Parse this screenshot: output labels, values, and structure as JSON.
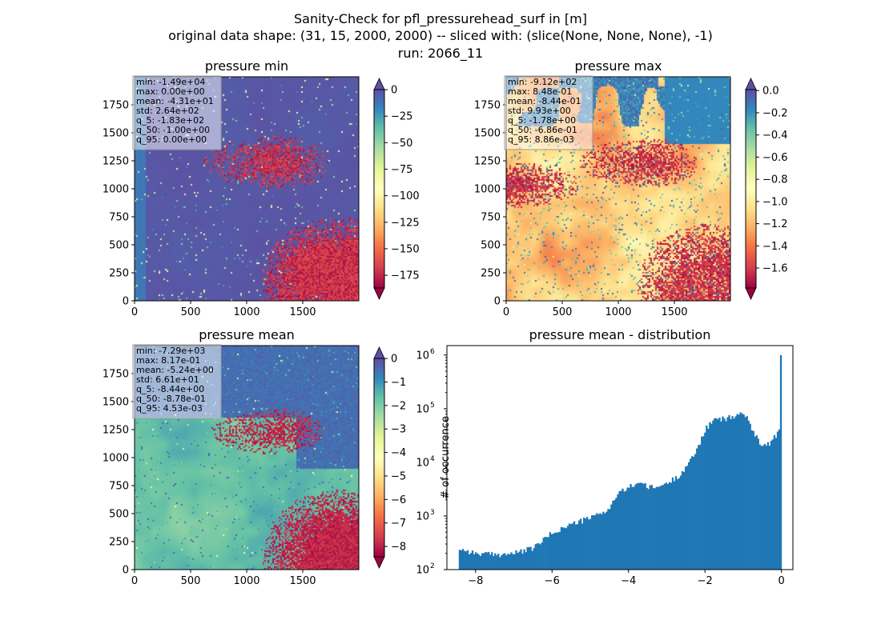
{
  "figure": {
    "suptitle_lines": [
      "Sanity-Check for pfl_pressurehead_surf in [m]",
      "original data shape: (31, 15, 2000, 2000) -- sliced with: (slice(None, None, None), -1)",
      "run: 2066_11"
    ]
  },
  "colors": {
    "spectral": [
      "#9e0142",
      "#d53e4f",
      "#f46d43",
      "#fdae61",
      "#fee08b",
      "#ffffbf",
      "#e6f598",
      "#abdda4",
      "#66c2a5",
      "#3288bd",
      "#5e4fa2"
    ],
    "histogram_bar": "#1f77b4",
    "stats_box_bg": "#ffffff",
    "stats_box_edge": "#999999"
  },
  "chart_data": [
    {
      "type": "heatmap",
      "title": "pressure min",
      "colormap": "Spectral",
      "x_ticks": [
        0,
        500,
        1000,
        1500
      ],
      "y_ticks": [
        0,
        250,
        500,
        750,
        1000,
        1250,
        1500,
        1750
      ],
      "x_range": [
        0,
        2000
      ],
      "y_range": [
        0,
        2000
      ],
      "color_range": [
        -187,
        0
      ],
      "colorbar_ticks": [
        0,
        -25,
        -50,
        -75,
        -100,
        -125,
        -150,
        -175
      ],
      "colorbar_extend": "both",
      "stats": [
        "min: -1.49e+04",
        "max: 0.00e+00",
        "mean: -4.31e+01",
        "std: 2.64e+02",
        "q_5: -1.83e+02",
        "q_50: -1.00e+00",
        "q_95: 0.00e+00"
      ]
    },
    {
      "type": "heatmap",
      "title": "pressure max",
      "colormap": "Spectral",
      "x_ticks": [
        0,
        500,
        1000,
        1500
      ],
      "y_ticks": [
        0,
        250,
        500,
        750,
        1000,
        1250,
        1500,
        1750
      ],
      "x_range": [
        0,
        2000
      ],
      "y_range": [
        0,
        2000
      ],
      "color_range": [
        -1.78,
        0.0089
      ],
      "colorbar_ticks": [
        0.0,
        -0.2,
        -0.4,
        -0.6,
        -0.8,
        -1.0,
        -1.2,
        -1.4,
        -1.6
      ],
      "colorbar_tick_labels": [
        "0.0",
        "−0.2",
        "−0.4",
        "−0.6",
        "−0.8",
        "−1.0",
        "−1.2",
        "−1.4",
        "−1.6"
      ],
      "colorbar_extend": "both",
      "stats": [
        "min: -9.12e+02",
        "max: 8.48e-01",
        "mean: -8.44e-01",
        "std: 9.93e+00",
        "q_5: -1.78e+00",
        "q_50: -6.86e-01",
        "q_95: 8.86e-03"
      ]
    },
    {
      "type": "heatmap",
      "title": "pressure mean",
      "colormap": "Spectral",
      "x_ticks": [
        0,
        500,
        1000,
        1500
      ],
      "y_ticks": [
        0,
        250,
        500,
        750,
        1000,
        1250,
        1500,
        1750
      ],
      "x_range": [
        0,
        2000
      ],
      "y_range": [
        0,
        2000
      ],
      "color_range": [
        -8.44,
        0.0045
      ],
      "colorbar_ticks": [
        0,
        -1,
        -2,
        -3,
        -4,
        -5,
        -6,
        -7,
        -8
      ],
      "colorbar_extend": "both",
      "stats": [
        "min: -7.29e+03",
        "max: 8.17e-01",
        "mean: -5.24e+00",
        "std: 6.61e+01",
        "q_5: -8.44e+00",
        "q_50: -8.78e-01",
        "q_95: 4.53e-03"
      ]
    },
    {
      "type": "bar",
      "title": "pressure mean - distribution",
      "ylabel": "# of occurrence",
      "yscale": "log",
      "xlim": [
        -8.75,
        0.3
      ],
      "ylim": [
        100,
        1500000
      ],
      "x_ticks": [
        -8,
        -6,
        -4,
        -2,
        0
      ],
      "y_ticks": [
        100,
        1000,
        10000,
        100000,
        1000000
      ],
      "y_tick_bases": [
        "10",
        "10",
        "10",
        "10",
        "10"
      ],
      "y_tick_exponents": [
        "2",
        "3",
        "4",
        "5",
        "6"
      ],
      "bin_range": [
        -8.44,
        0.0045
      ],
      "bins": 200,
      "profile": [
        [
          -8.44,
          250
        ],
        [
          -8.0,
          200
        ],
        [
          -7.5,
          190
        ],
        [
          -7.0,
          200
        ],
        [
          -6.5,
          250
        ],
        [
          -6.0,
          480
        ],
        [
          -5.5,
          700
        ],
        [
          -5.0,
          920
        ],
        [
          -4.5,
          1350
        ],
        [
          -4.3,
          2500
        ],
        [
          -4.0,
          3400
        ],
        [
          -3.7,
          4400
        ],
        [
          -3.5,
          3400
        ],
        [
          -3.3,
          3400
        ],
        [
          -3.0,
          4000
        ],
        [
          -2.7,
          5500
        ],
        [
          -2.4,
          10000
        ],
        [
          -2.2,
          18000
        ],
        [
          -2.0,
          40000
        ],
        [
          -1.8,
          60000
        ],
        [
          -1.5,
          65000
        ],
        [
          -1.2,
          72000
        ],
        [
          -1.0,
          88000
        ],
        [
          -0.85,
          55000
        ],
        [
          -0.7,
          35000
        ],
        [
          -0.5,
          20000
        ],
        [
          -0.3,
          23000
        ],
        [
          -0.1,
          35000
        ],
        [
          -0.02,
          42000
        ],
        [
          0.0,
          1000000
        ]
      ]
    }
  ]
}
